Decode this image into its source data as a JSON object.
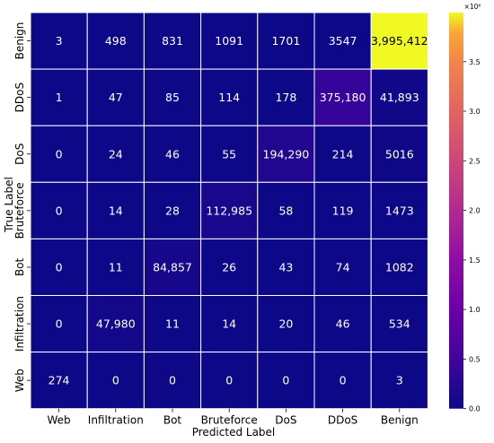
{
  "chart_data": {
    "type": "heatmap",
    "title": "",
    "xlabel": "Predicted Label",
    "ylabel": "True Label",
    "x_categories": [
      "Web",
      "Infiltration",
      "Bot",
      "Bruteforce",
      "DoS",
      "DDoS",
      "Benign"
    ],
    "y_categories": [
      "Benign",
      "DDoS",
      "DoS",
      "Bruteforce",
      "Bot",
      "Infiltration",
      "Web"
    ],
    "values": [
      [
        3,
        498,
        831,
        1091,
        1701,
        3547,
        3995412
      ],
      [
        1,
        47,
        85,
        114,
        178,
        375180,
        41893
      ],
      [
        0,
        24,
        46,
        55,
        194290,
        214,
        5016
      ],
      [
        0,
        14,
        28,
        112985,
        58,
        119,
        1473
      ],
      [
        0,
        11,
        84857,
        26,
        43,
        74,
        1082
      ],
      [
        0,
        47980,
        11,
        14,
        20,
        46,
        534
      ],
      [
        274,
        0,
        0,
        0,
        0,
        0,
        3
      ]
    ],
    "cell_labels": [
      [
        "3",
        "498",
        "831",
        "1091",
        "1701",
        "3547",
        "3,995,412"
      ],
      [
        "1",
        "47",
        "85",
        "114",
        "178",
        "375,180",
        "41,893"
      ],
      [
        "0",
        "24",
        "46",
        "55",
        "194,290",
        "214",
        "5016"
      ],
      [
        "0",
        "14",
        "28",
        "112,985",
        "58",
        "119",
        "1473"
      ],
      [
        "0",
        "11",
        "84,857",
        "26",
        "43",
        "74",
        "1082"
      ],
      [
        "0",
        "47,980",
        "11",
        "14",
        "20",
        "46",
        "534"
      ],
      [
        "274",
        "0",
        "0",
        "0",
        "0",
        "0",
        "3"
      ]
    ],
    "colorbar": {
      "min": 0,
      "max": 3995412,
      "colormap": "plasma",
      "scale_label": "×10⁶",
      "ticks": [
        {
          "value": 0,
          "label": "0.0"
        },
        {
          "value": 500000,
          "label": "0.5"
        },
        {
          "value": 1000000,
          "label": "1.0"
        },
        {
          "value": 1500000,
          "label": "1.5"
        },
        {
          "value": 2000000,
          "label": "2.0"
        },
        {
          "value": 2500000,
          "label": "2.5"
        },
        {
          "value": 3000000,
          "label": "3.0"
        },
        {
          "value": 3500000,
          "label": "3.5"
        }
      ]
    },
    "colors": {
      "cell_border": "#ffffff",
      "label_on_dark": "#ffffff",
      "label_on_light": "#000000"
    }
  }
}
